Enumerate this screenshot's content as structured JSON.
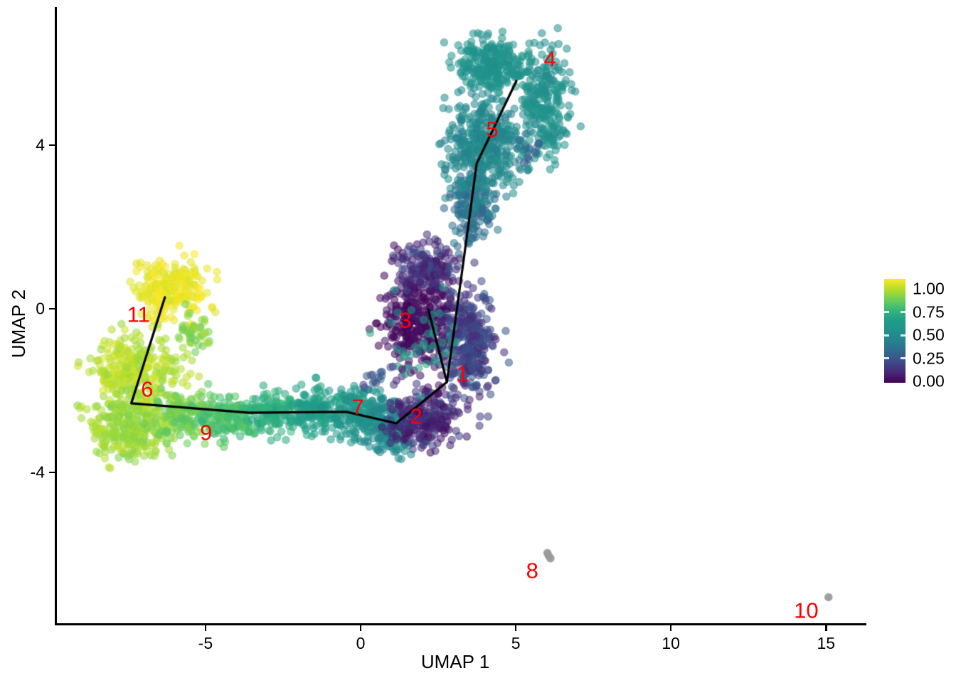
{
  "chart_data": {
    "type": "scatter",
    "title": "",
    "xlabel": "UMAP 1",
    "ylabel": "UMAP 2",
    "xlim": [
      -9.8,
      16.3
    ],
    "ylim": [
      -7.7,
      7.3
    ],
    "x_ticks": [
      {
        "value": -5,
        "label": "-5"
      },
      {
        "value": 0,
        "label": "0"
      },
      {
        "value": 5,
        "label": "5"
      },
      {
        "value": 10,
        "label": "10"
      },
      {
        "value": 15,
        "label": "15"
      }
    ],
    "y_ticks": [
      {
        "value": 4,
        "label": "4"
      },
      {
        "value": 0,
        "label": "0"
      },
      {
        "value": -4,
        "label": "-4"
      }
    ],
    "grid": false,
    "point_style": {
      "radius": 5.2,
      "alpha": 0.55,
      "na_color": "#9a9a9a"
    },
    "label_color": "#ff0000",
    "colorbar": {
      "position": "right",
      "tick_labels": [
        "1.00",
        "0.75",
        "0.50",
        "0.25",
        "0.00"
      ],
      "tick_values": [
        1.0,
        0.75,
        0.5,
        0.25,
        0.0
      ],
      "palette": "viridis",
      "colors": [
        "#440154",
        "#482878",
        "#3e4a89",
        "#31688e",
        "#26828e",
        "#21918c",
        "#1f9e89",
        "#35b779",
        "#6ece58",
        "#b5de2b",
        "#fde725"
      ]
    },
    "cluster_labels": [
      {
        "label": "1",
        "x": 3.28,
        "y": -1.58
      },
      {
        "label": "2",
        "x": 1.79,
        "y": -2.63
      },
      {
        "label": "3",
        "x": 1.44,
        "y": -0.28
      },
      {
        "label": "4",
        "x": 6.1,
        "y": 6.1
      },
      {
        "label": "5",
        "x": 4.24,
        "y": 4.38
      },
      {
        "label": "6",
        "x": -6.88,
        "y": -1.97
      },
      {
        "label": "7",
        "x": -0.09,
        "y": -2.4
      },
      {
        "label": "8",
        "x": 5.53,
        "y": -6.4
      },
      {
        "label": "9",
        "x": -4.98,
        "y": -3.03
      },
      {
        "label": "10",
        "x": 14.36,
        "y": -7.37
      },
      {
        "label": "11",
        "x": -7.16,
        "y": -0.14
      }
    ],
    "clusters": [
      {
        "name": "cluster-11-yellow",
        "n": 240,
        "cx": -6.12,
        "cy": 0.5,
        "rx": 1.22,
        "ry": 0.72,
        "value": 0.97,
        "jitter": 0.03
      },
      {
        "name": "cluster-11-neck",
        "n": 45,
        "cx": -5.35,
        "cy": -0.6,
        "rx": 0.55,
        "ry": 0.5,
        "value": 0.84,
        "jitter": 0.06
      },
      {
        "name": "cluster-6-upper",
        "n": 310,
        "cx": -7.15,
        "cy": -1.6,
        "rx": 1.45,
        "ry": 1.02,
        "value": 0.9,
        "jitter": 0.05
      },
      {
        "name": "cluster-6-lower",
        "n": 280,
        "cx": -7.4,
        "cy": -2.9,
        "rx": 1.4,
        "ry": 0.78,
        "value": 0.86,
        "jitter": 0.05
      },
      {
        "name": "cluster-9-west",
        "n": 150,
        "cx": -5.6,
        "cy": -2.55,
        "rx": 1.0,
        "ry": 0.58,
        "value": 0.8,
        "jitter": 0.05
      },
      {
        "name": "cluster-9-arm",
        "n": 140,
        "cx": -4.2,
        "cy": -2.65,
        "rx": 1.0,
        "ry": 0.5,
        "value": 0.73,
        "jitter": 0.05
      },
      {
        "name": "band-7-west",
        "n": 140,
        "cx": -2.7,
        "cy": -2.55,
        "rx": 1.0,
        "ry": 0.5,
        "value": 0.66,
        "jitter": 0.05
      },
      {
        "name": "band-7-mid",
        "n": 155,
        "cx": -1.35,
        "cy": -2.45,
        "rx": 1.0,
        "ry": 0.6,
        "value": 0.6,
        "jitter": 0.05
      },
      {
        "name": "band-7-east",
        "n": 165,
        "cx": -0.05,
        "cy": -2.55,
        "rx": 0.95,
        "ry": 0.7,
        "value": 0.53,
        "jitter": 0.05
      },
      {
        "name": "band-2-west",
        "n": 150,
        "cx": 1.0,
        "cy": -2.9,
        "rx": 0.8,
        "ry": 0.68,
        "value": 0.46,
        "jitter": 0.06
      },
      {
        "name": "cluster-3-core",
        "n": 350,
        "cx": 1.79,
        "cy": -0.37,
        "rx": 1.25,
        "ry": 1.15,
        "value": 0.03,
        "jitter": 0.04
      },
      {
        "name": "cluster-3-top",
        "n": 170,
        "cx": 2.13,
        "cy": 1.03,
        "rx": 1.1,
        "ry": 0.62,
        "value": 0.13,
        "jitter": 0.1
      },
      {
        "name": "cluster-1-column",
        "n": 320,
        "cx": 3.5,
        "cy": -0.8,
        "rx": 0.85,
        "ry": 1.4,
        "value": 0.17,
        "jitter": 0.09
      },
      {
        "name": "cluster-2-bottom",
        "n": 250,
        "cx": 2.1,
        "cy": -2.7,
        "rx": 1.25,
        "ry": 0.75,
        "value": 0.1,
        "jitter": 0.08
      },
      {
        "name": "green-accents",
        "n": 40,
        "cx": 1.9,
        "cy": -0.9,
        "rx": 1.3,
        "ry": 1.3,
        "value": 0.58,
        "jitter": 0.08
      },
      {
        "name": "lavender-accents",
        "n": 14,
        "cx": 0.45,
        "cy": -1.7,
        "rx": 0.5,
        "ry": 0.35,
        "value": 0.24,
        "jitter": 0.08
      },
      {
        "name": "transition-column",
        "n": 160,
        "cx": 3.58,
        "cy": 2.5,
        "rx": 0.68,
        "ry": 0.95,
        "value": 0.33,
        "jitter": 0.05
      },
      {
        "name": "cluster-5-main",
        "n": 400,
        "cx": 3.95,
        "cy": 3.95,
        "rx": 1.25,
        "ry": 1.28,
        "value": 0.44,
        "jitter": 0.07
      },
      {
        "name": "cluster-5-head",
        "n": 250,
        "cx": 4.2,
        "cy": 5.95,
        "rx": 1.12,
        "ry": 0.66,
        "value": 0.52,
        "jitter": 0.04
      },
      {
        "name": "cluster-4",
        "n": 250,
        "cx": 5.9,
        "cy": 4.95,
        "rx": 0.85,
        "ry": 1.45,
        "value": 0.5,
        "jitter": 0.05
      },
      {
        "name": "cluster-4-strays",
        "n": 14,
        "cx": 5.55,
        "cy": 3.9,
        "rx": 0.45,
        "ry": 0.45,
        "value": 0.28,
        "jitter": 0.06
      }
    ],
    "na_clusters": [
      {
        "label": "8",
        "points": [
          [
            6.02,
            -5.97
          ],
          [
            6.12,
            -6.1
          ],
          [
            6.06,
            -6.04
          ]
        ]
      },
      {
        "label": "10",
        "points": [
          [
            15.08,
            -7.05
          ]
        ]
      }
    ],
    "trajectory": {
      "color": "#000000",
      "width": 3.2,
      "paths": [
        [
          [
            5.02,
            5.57
          ],
          [
            3.74,
            3.55
          ],
          [
            3.39,
            1.58
          ],
          [
            2.78,
            -1.79
          ],
          [
            1.15,
            -2.8
          ],
          [
            -0.46,
            -2.52
          ],
          [
            -3.6,
            -2.54
          ],
          [
            -7.39,
            -2.31
          ],
          [
            -6.31,
            0.28
          ]
        ],
        [
          [
            2.78,
            -1.79
          ],
          [
            2.18,
            -0.02
          ]
        ]
      ]
    }
  }
}
